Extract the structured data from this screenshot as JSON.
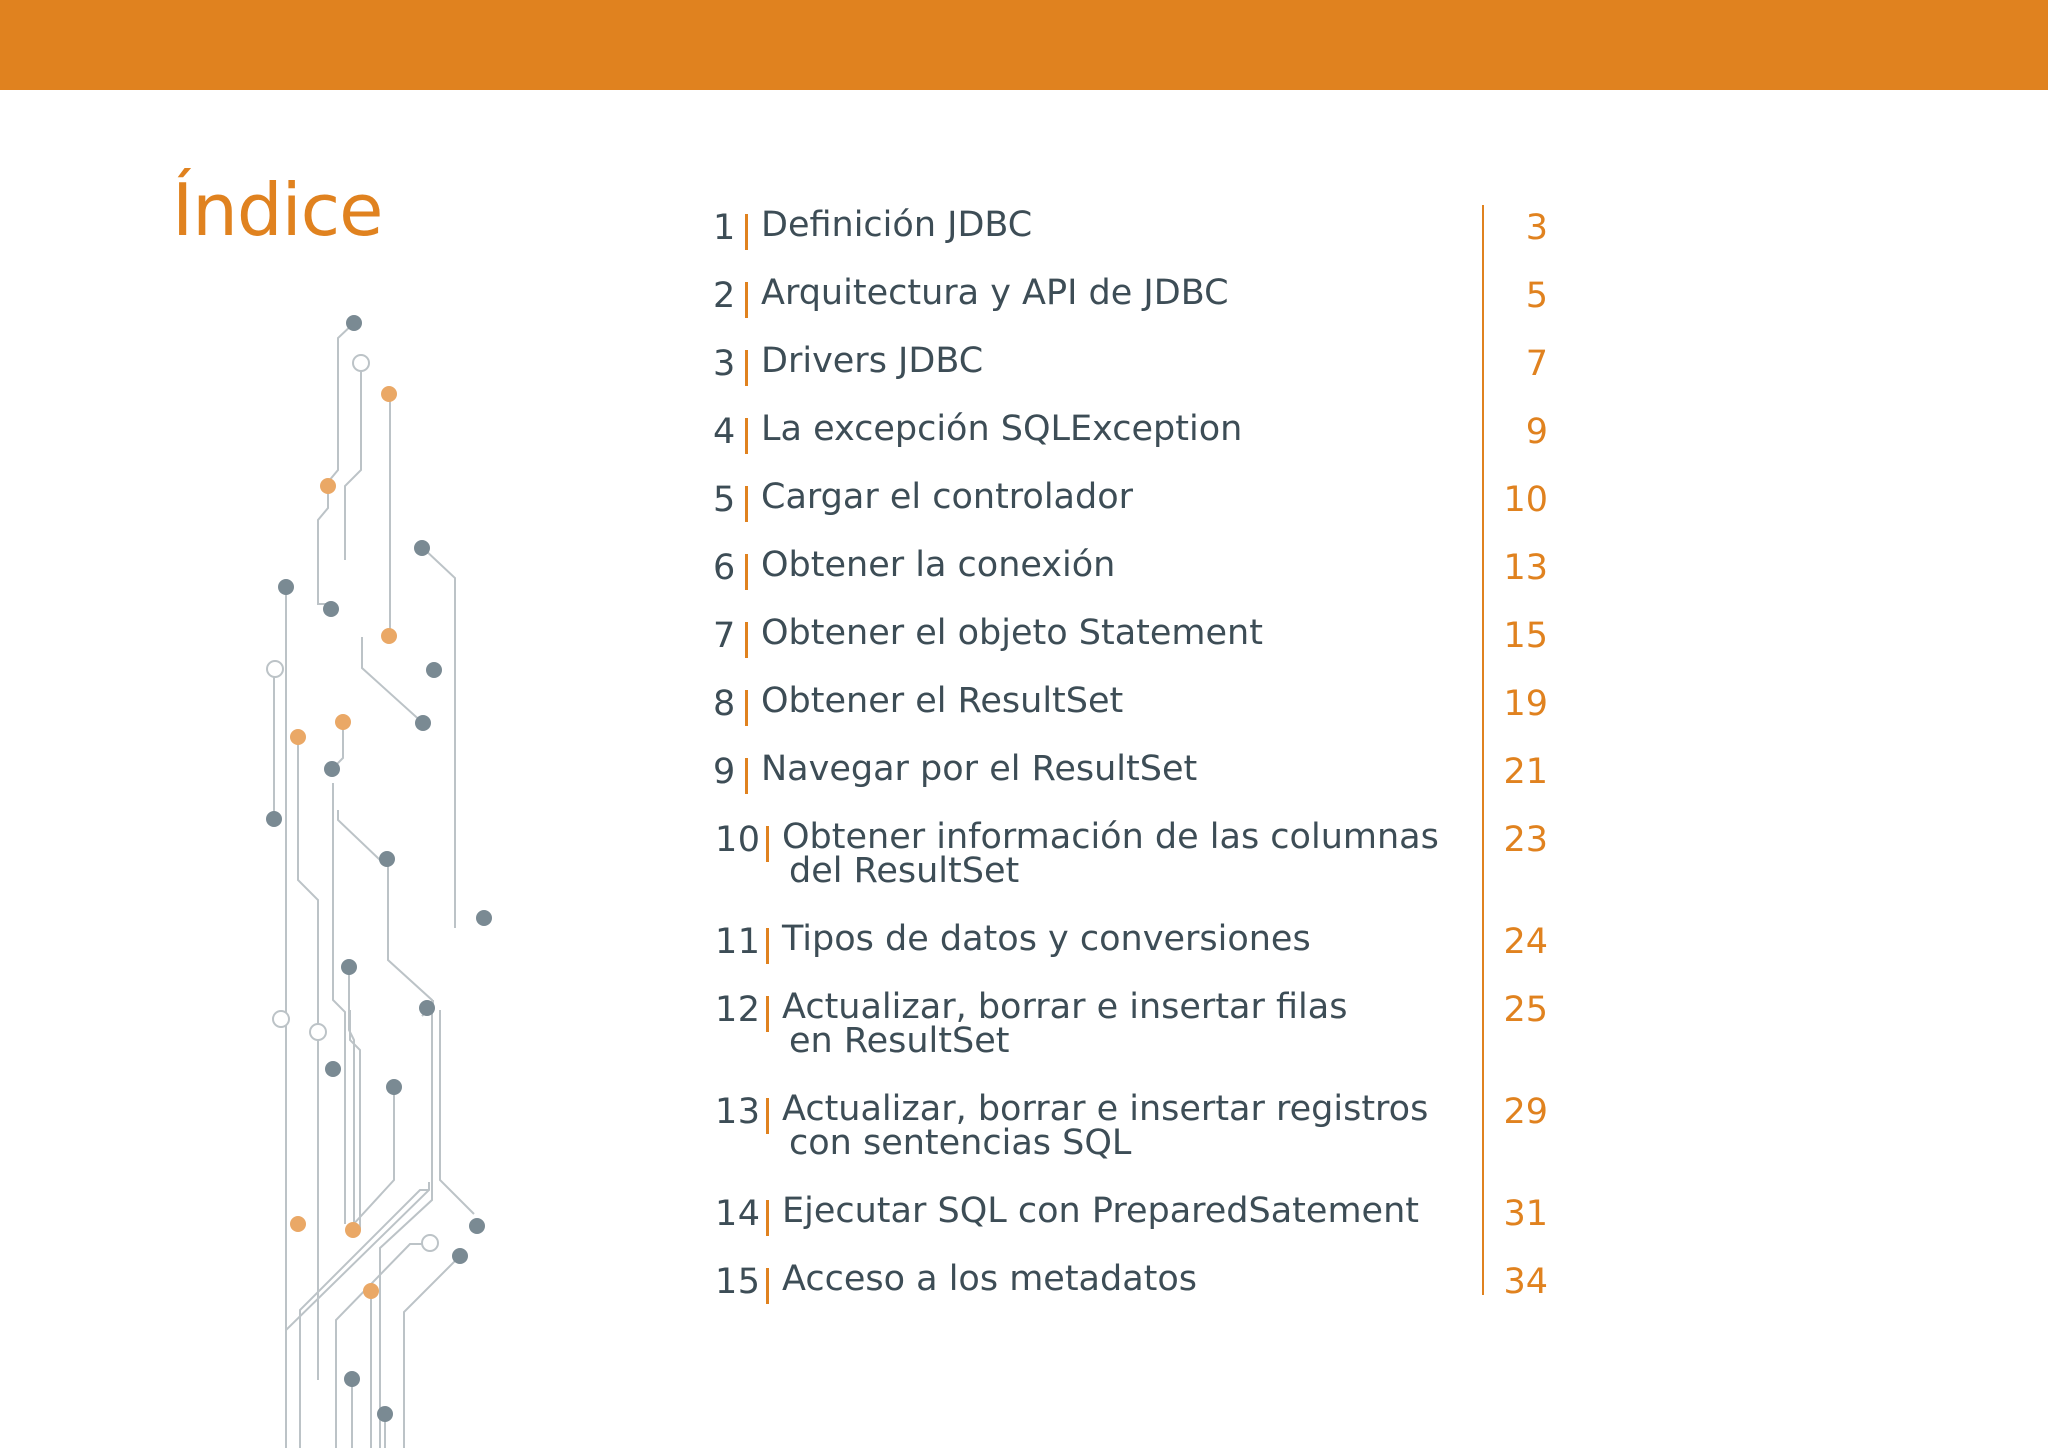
{
  "document": {
    "title": "Índice",
    "accent_color": "#e0821f",
    "text_color": "#3d4d56"
  },
  "toc": [
    {
      "num": "1",
      "title": "Definición JDBC",
      "title2": "",
      "page": "3"
    },
    {
      "num": "2",
      "title": "Arquitectura y API de JDBC",
      "title2": "",
      "page": "5"
    },
    {
      "num": "3",
      "title": "Drivers JDBC",
      "title2": "",
      "page": "7"
    },
    {
      "num": "4",
      "title": "La excepción SQLException",
      "title2": "",
      "page": "9"
    },
    {
      "num": "5",
      "title": "Cargar el controlador",
      "title2": "",
      "page": "10"
    },
    {
      "num": "6",
      "title": "Obtener la conexión",
      "title2": "",
      "page": "13"
    },
    {
      "num": "7",
      "title": "Obtener el objeto Statement",
      "title2": "",
      "page": "15"
    },
    {
      "num": "8",
      "title": "Obtener el ResultSet",
      "title2": "",
      "page": "19"
    },
    {
      "num": "9",
      "title": "Navegar por el ResultSet",
      "title2": "",
      "page": "21"
    },
    {
      "num": "10",
      "title": "Obtener información de las columnas",
      "title2": "del ResultSet",
      "page": "23"
    },
    {
      "num": "11",
      "title": "Tipos de datos y conversiones",
      "title2": "",
      "page": "24"
    },
    {
      "num": "12",
      "title": "Actualizar, borrar e insertar filas",
      "title2": "en ResultSet",
      "page": "25"
    },
    {
      "num": "13",
      "title": "Actualizar, borrar e insertar registros",
      "title2": "con sentencias SQL",
      "page": "29"
    },
    {
      "num": "14",
      "title": "Ejecutar SQL con PreparedSatement",
      "title2": "",
      "page": "31"
    },
    {
      "num": "15",
      "title": "Acceso a los metadatos",
      "title2": "",
      "page": "34"
    }
  ]
}
